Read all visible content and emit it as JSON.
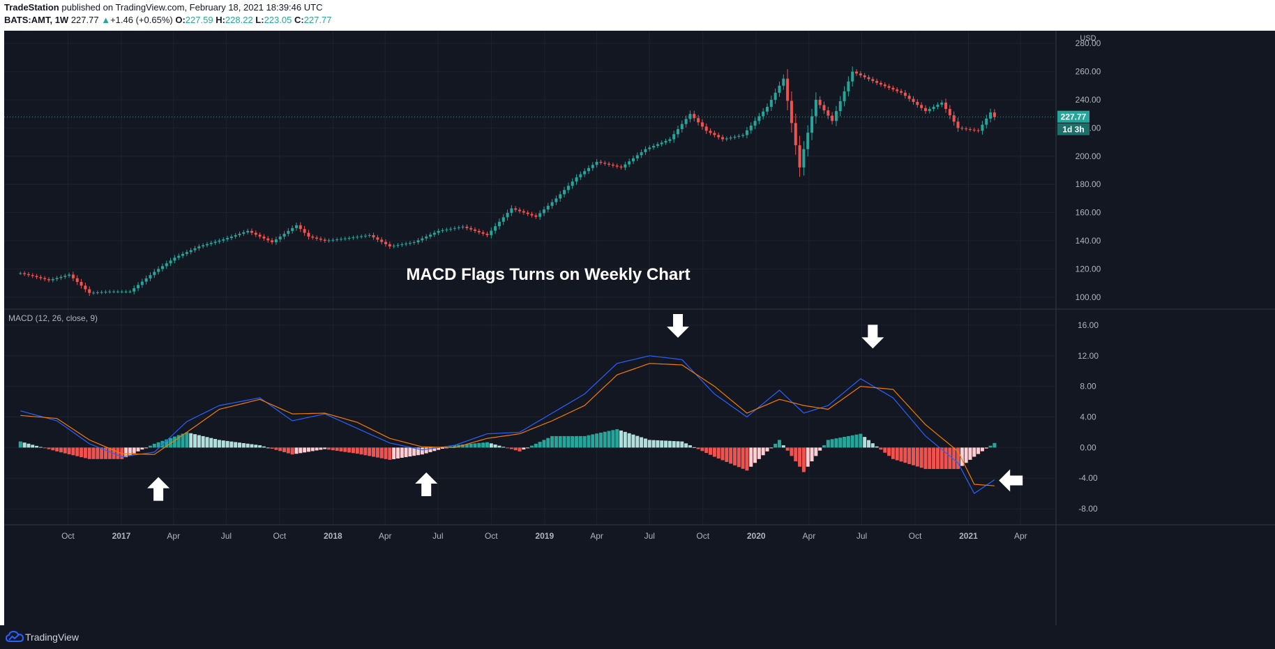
{
  "header": {
    "publisher": "TradeStation",
    "published_text": " published on TradingView.com, February 18, 2021 18:39:46 UTC",
    "symbol": "BATS:AMT, 1W",
    "last": "227.77",
    "change": "+1.46 (+0.65%)",
    "o_label": "O:",
    "o": "227.59",
    "h_label": "H:",
    "h": "228.22",
    "l_label": "L:",
    "l": "223.05",
    "c_label": "C:",
    "c": "227.77"
  },
  "footer": {
    "brand": "TradingView"
  },
  "chart_data": [
    {
      "type": "candlestick",
      "title": "MACD Flags Turns on Weekly Chart",
      "currency": "USD",
      "y_ticks": [
        "280.00",
        "260.00",
        "240.00",
        "220.00",
        "200.00",
        "180.00",
        "160.00",
        "140.00",
        "120.00",
        "100.00"
      ],
      "ylim": [
        92,
        289
      ],
      "price_tag": "227.77",
      "countdown_tag": "1d 3h",
      "x_ticks": [
        "Oct",
        "2017",
        "Apr",
        "Jul",
        "Oct",
        "2018",
        "Apr",
        "Jul",
        "Oct",
        "2019",
        "Apr",
        "Jul",
        "Oct",
        "2020",
        "Apr",
        "Jul",
        "Oct",
        "2021",
        "Apr"
      ],
      "x_tick_bold": [
        "2017",
        "2018",
        "2019",
        "2020",
        "2021"
      ],
      "x": [
        "2016-07-11",
        "2016-08-01",
        "2016-08-29",
        "2016-10-03",
        "2016-11-07",
        "2016-12-12",
        "2017-01-16",
        "2017-02-27",
        "2017-04-03",
        "2017-05-15",
        "2017-06-26",
        "2017-08-07",
        "2017-09-18",
        "2017-10-30",
        "2017-11-20",
        "2017-12-18",
        "2018-01-29",
        "2018-03-05",
        "2018-04-09",
        "2018-05-21",
        "2018-07-02",
        "2018-08-13",
        "2018-09-24",
        "2018-11-05",
        "2018-12-17",
        "2019-01-21",
        "2019-02-25",
        "2019-04-01",
        "2019-05-13",
        "2019-06-24",
        "2019-08-05",
        "2019-09-09",
        "2019-10-07",
        "2019-11-04",
        "2019-12-09",
        "2020-01-20",
        "2020-02-17",
        "2020-03-16",
        "2020-03-23",
        "2020-04-13",
        "2020-05-11",
        "2020-06-15",
        "2020-07-27",
        "2020-09-07",
        "2020-10-19",
        "2020-11-16",
        "2020-12-14",
        "2021-01-18",
        "2021-02-08",
        "2021-02-15"
      ],
      "close": [
        117,
        115,
        112,
        116,
        103,
        104,
        104,
        118,
        128,
        136,
        141,
        147,
        139,
        151,
        143,
        140,
        142,
        144,
        136,
        139,
        147,
        150,
        144,
        163,
        157,
        170,
        185,
        196,
        192,
        205,
        212,
        230,
        218,
        212,
        215,
        235,
        255,
        192,
        205,
        240,
        225,
        260,
        252,
        245,
        232,
        238,
        220,
        218,
        231,
        227.77
      ]
    },
    {
      "type": "line",
      "title": "MACD (12, 26, close, 9)",
      "y_ticks": [
        "16.00",
        "12.00",
        "8.00",
        "4.00",
        "0.00",
        "-4.00",
        "-8.00"
      ],
      "ylim": [
        -10,
        18
      ],
      "x": [
        "2016-07-11",
        "2016-09-12",
        "2016-11-07",
        "2017-01-02",
        "2017-02-27",
        "2017-04-24",
        "2017-06-19",
        "2017-08-28",
        "2017-10-23",
        "2017-12-18",
        "2018-02-12",
        "2018-04-09",
        "2018-06-04",
        "2018-07-30",
        "2018-09-24",
        "2018-11-19",
        "2019-01-14",
        "2019-03-11",
        "2019-05-06",
        "2019-07-01",
        "2019-08-26",
        "2019-10-21",
        "2019-12-16",
        "2020-02-10",
        "2020-03-23",
        "2020-05-04",
        "2020-06-29",
        "2020-08-24",
        "2020-10-19",
        "2020-12-14",
        "2021-01-11",
        "2021-02-15"
      ],
      "series": [
        {
          "color": "#2962ff",
          "values": [
            4.8,
            3.5,
            0.5,
            -1.2,
            -0.6,
            3.4,
            5.5,
            6.5,
            3.5,
            4.4,
            2.5,
            0.6,
            -0.3,
            0.3,
            1.8,
            2.0,
            4.5,
            7.0,
            11.0,
            12.0,
            11.5,
            7.0,
            4.0,
            7.5,
            4.5,
            5.5,
            9.0,
            6.5,
            1.5,
            -2.0,
            -6.0,
            -4.2
          ]
        },
        {
          "color": "#f57c00",
          "values": [
            4.2,
            3.8,
            1.0,
            -0.8,
            -0.9,
            2.0,
            5.0,
            6.3,
            4.4,
            4.5,
            3.3,
            1.2,
            0.1,
            0.0,
            1.2,
            1.8,
            3.5,
            5.5,
            9.5,
            11.0,
            10.8,
            8.0,
            4.5,
            6.3,
            5.5,
            5.0,
            8.0,
            7.6,
            3.0,
            -0.5,
            -4.8,
            -5.0
          ]
        }
      ],
      "histogram_colors": {
        "rising_positive": "#26a69a",
        "falling_positive": "#b2dfdb",
        "falling_negative": "#ef5350",
        "rising_negative": "#ffcdd2"
      },
      "histogram_x": [
        "2016-07-11",
        "2016-09-12",
        "2016-11-07",
        "2017-01-02",
        "2017-02-27",
        "2017-04-24",
        "2017-06-19",
        "2017-08-28",
        "2017-10-23",
        "2017-12-18",
        "2018-02-12",
        "2018-04-09",
        "2018-06-04",
        "2018-07-30",
        "2018-09-24",
        "2018-11-19",
        "2019-01-14",
        "2019-03-11",
        "2019-05-06",
        "2019-07-01",
        "2019-08-26",
        "2019-10-21",
        "2019-12-16",
        "2020-02-10",
        "2020-03-23",
        "2020-05-04",
        "2020-06-29",
        "2020-08-24",
        "2020-10-19",
        "2020-12-14",
        "2021-01-11",
        "2021-02-15"
      ],
      "histogram": [
        0.8,
        -0.5,
        -1.5,
        -1.5,
        0.5,
        2.0,
        1.0,
        0.3,
        -0.9,
        -0.2,
        -0.8,
        -1.6,
        -0.9,
        0.3,
        0.7,
        -0.5,
        1.5,
        1.5,
        2.4,
        1.0,
        0.8,
        -1.2,
        -3.0,
        1.0,
        -3.2,
        1.0,
        1.8,
        -1.5,
        -2.8,
        -2.8,
        -1.2,
        0.6
      ]
    }
  ],
  "annotations": {
    "arrows": [
      {
        "direction": "up",
        "date": "2017-03-06",
        "value": -5.4
      },
      {
        "direction": "up",
        "date": "2018-06-11",
        "value": -4.8
      },
      {
        "direction": "down",
        "date": "2019-08-19",
        "value": 15.9
      },
      {
        "direction": "down",
        "date": "2020-07-20",
        "value": 14.5
      },
      {
        "direction": "left",
        "date": "2021-03-15",
        "value": -4.3
      }
    ]
  }
}
